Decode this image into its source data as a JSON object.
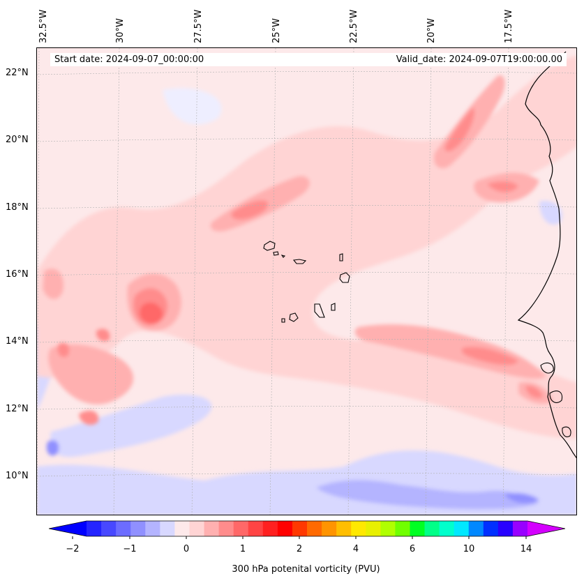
{
  "header": {
    "start_date": "Start date: 2024-09-07_00:00:00",
    "valid_date": "Valid_date: 2024-09-07T19:00:00.00"
  },
  "map": {
    "longitude_labels": [
      "32.5°W",
      "30°W",
      "27.5°W",
      "25°W",
      "22.5°W",
      "20°W",
      "17.5°W"
    ],
    "latitude_labels": [
      "22°N",
      "20°N",
      "18°N",
      "16°N",
      "14°N",
      "12°N",
      "10°N"
    ],
    "extent": {
      "lon_min": -33.0,
      "lon_max": -15.5,
      "lat_min": 8.9,
      "lat_max": 22.8
    },
    "gridlines": true,
    "background_color": "#fde9ea"
  },
  "colorbar": {
    "title": "300 hPa potenital vorticity (PVU)",
    "tick_labels": [
      "−2",
      "−1",
      "0",
      "1",
      "2",
      "4",
      "6",
      "10",
      "14"
    ],
    "extend": "both",
    "colors": [
      "#0000ff",
      "#2424ff",
      "#4848ff",
      "#6c6cff",
      "#9090ff",
      "#b4b4ff",
      "#d8d8ff",
      "#fde9ea",
      "#ffd4d4",
      "#ffb0b0",
      "#ff8c8c",
      "#ff6868",
      "#ff4444",
      "#ff2020",
      "#ff0000",
      "#ff3800",
      "#ff6a00",
      "#ff9400",
      "#ffbe00",
      "#ffe800",
      "#e8f000",
      "#b0ff00",
      "#70ff00",
      "#00ff22",
      "#00ff88",
      "#00ffcc",
      "#00e8ff",
      "#0088ff",
      "#0030ff",
      "#2800ff",
      "#9800ff",
      "#d400ff"
    ]
  }
}
